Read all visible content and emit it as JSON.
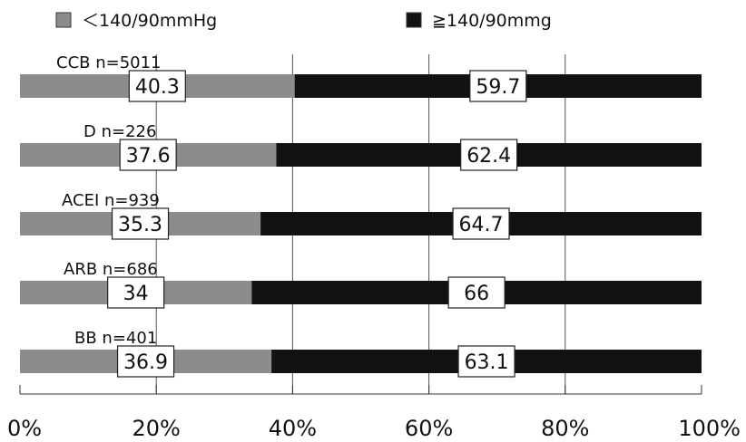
{
  "chart_data": {
    "type": "bar",
    "orientation": "horizontal",
    "stacked": true,
    "percent_stacked": true,
    "categories": [
      "CCB  n=5011",
      "D  n=226",
      "ACEI  n=939",
      "ARB  n=686",
      "BB  n=401"
    ],
    "series": [
      {
        "name": "＜140/90mmHg",
        "color": "#8c8c8c",
        "values": [
          40.3,
          37.6,
          35.3,
          34.0,
          36.9
        ]
      },
      {
        "name": "≧140/90mmg",
        "color": "#111111",
        "values": [
          59.7,
          62.4,
          64.7,
          66.0,
          63.1
        ]
      }
    ],
    "x_ticks": [
      "0%",
      "20%",
      "40%",
      "60%",
      "80%",
      "100%"
    ],
    "xlim": [
      0,
      100
    ],
    "grid": "vertical",
    "legend_position": "top"
  }
}
